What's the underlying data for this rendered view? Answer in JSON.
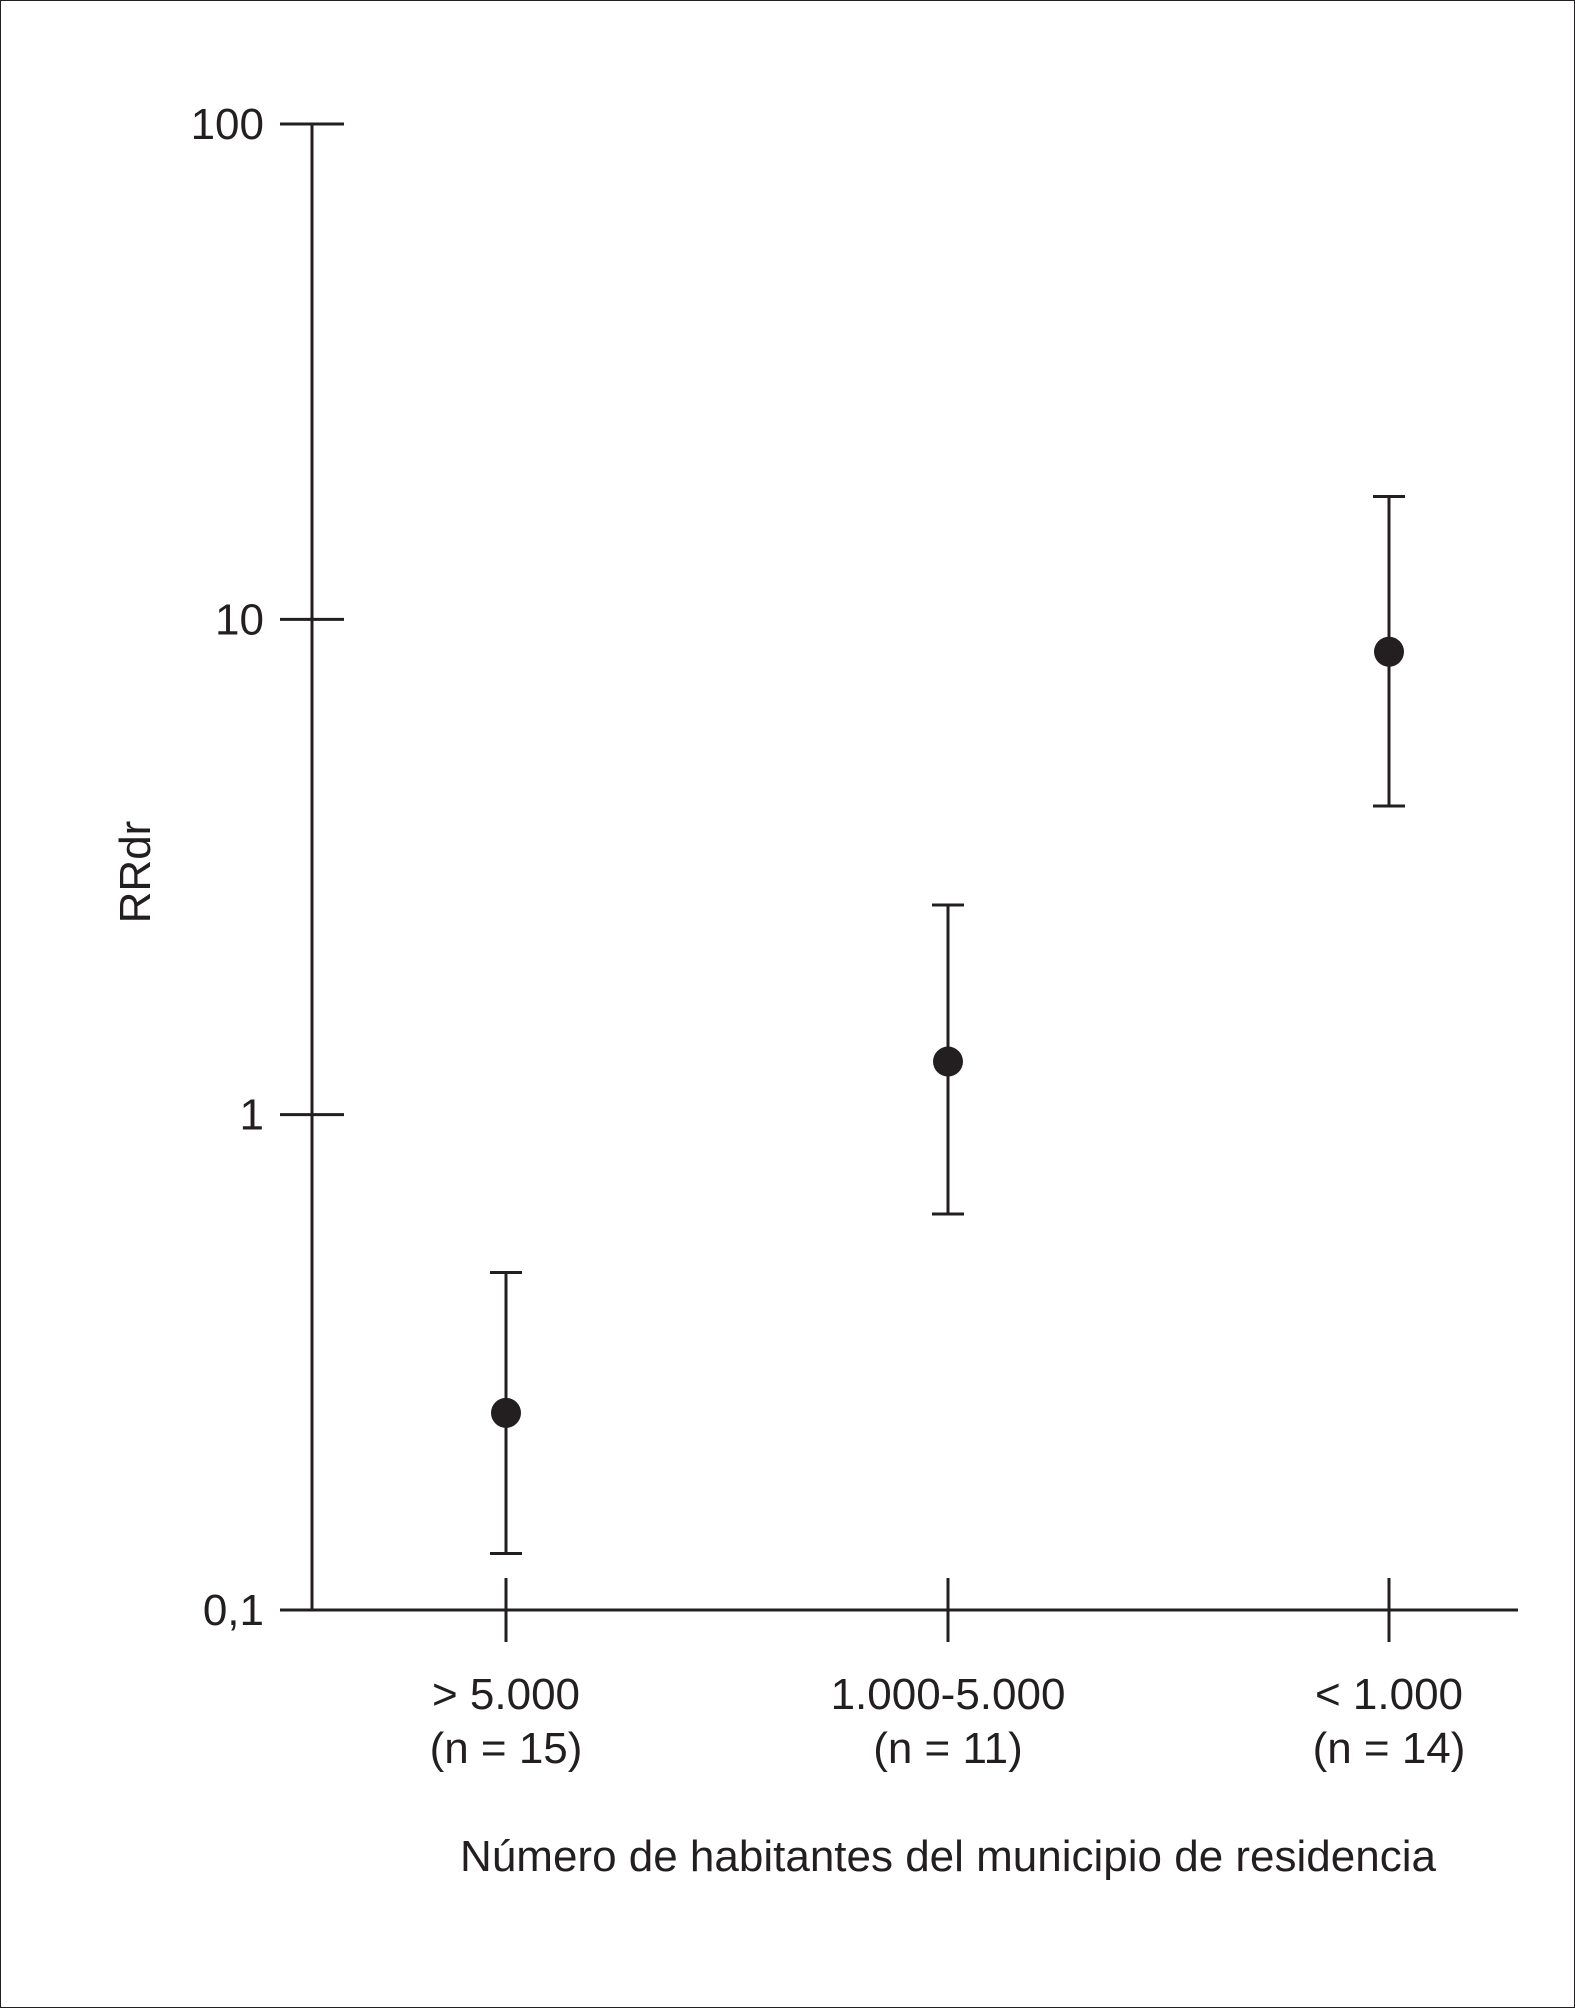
{
  "chart_data": {
    "type": "scatter",
    "title": "",
    "xlabel": "Número de habitantes del municipio de residencia",
    "ylabel": "RRdr",
    "yscale": "log",
    "ylim": [
      0.1,
      100
    ],
    "yticks": [
      {
        "value": 0.1,
        "label": "0,1"
      },
      {
        "value": 1,
        "label": "1"
      },
      {
        "value": 10,
        "label": "10"
      },
      {
        "value": 100,
        "label": "100"
      }
    ],
    "categories": [
      {
        "label": "> 5.000",
        "sublabel": "(n = 15)"
      },
      {
        "label": "1.000-5.000",
        "sublabel": "(n = 11)"
      },
      {
        "label": "< 1.000",
        "sublabel": "(n = 14)"
      }
    ],
    "series": [
      {
        "points": [
          {
            "category": "> 5.000",
            "value": 0.25,
            "ci_low": 0.13,
            "ci_high": 0.48
          },
          {
            "category": "1.000-5.000",
            "value": 1.28,
            "ci_low": 0.63,
            "ci_high": 2.65
          },
          {
            "category": "< 1.000",
            "value": 8.6,
            "ci_low": 4.2,
            "ci_high": 17.7
          }
        ]
      }
    ],
    "grid": false,
    "legend": "none",
    "colors": {
      "ink": "#231f20",
      "background": "#ffffff"
    }
  }
}
